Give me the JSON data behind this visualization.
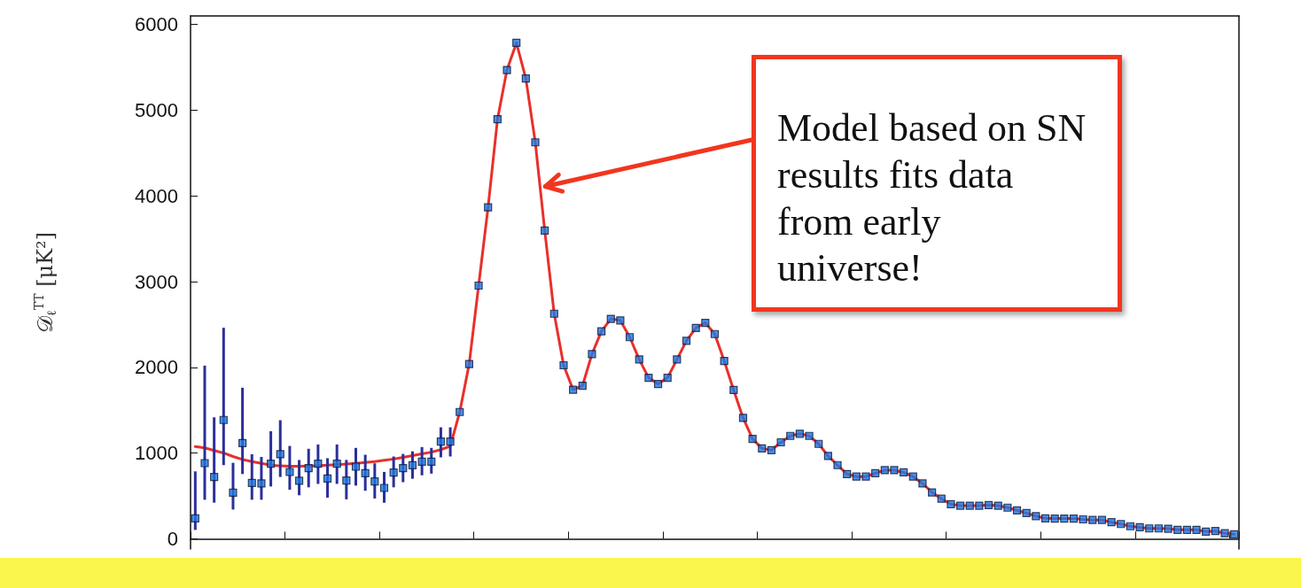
{
  "chart_data": {
    "type": "scatter",
    "ylabel": "𝒟$_{ℓ}$$^{TT}$ [μK²]",
    "categories": [
      null,
      null,
      null,
      null,
      null,
      null,
      null,
      null,
      null,
      null,
      null,
      null,
      null,
      null,
      null,
      null,
      null,
      null,
      null,
      null,
      null,
      null,
      null,
      null,
      null,
      null,
      null,
      null,
      null,
      null,
      null,
      null,
      null,
      null,
      null,
      null,
      null,
      null,
      null,
      null,
      null,
      null,
      null,
      null,
      null,
      null,
      null,
      null,
      null,
      null,
      null,
      null,
      null,
      null,
      null,
      null,
      null,
      null,
      null,
      null,
      null,
      null,
      null,
      null,
      null,
      null,
      null,
      null,
      null,
      null,
      null,
      null,
      null,
      null,
      null,
      null,
      null,
      null,
      null,
      null,
      null,
      null,
      null,
      null,
      null,
      null,
      null,
      null,
      null,
      null,
      null,
      null,
      null,
      null,
      null,
      null,
      null,
      null,
      null,
      null,
      null,
      null,
      null,
      null,
      null,
      null,
      null,
      null,
      null,
      null,
      null
    ],
    "ylim": [
      -120,
      6100
    ],
    "yticks": [
      0,
      1000,
      2000,
      3000,
      4000,
      5000,
      6000
    ],
    "tick_labels": "y",
    "series": [
      {
        "type": "line",
        "color": "#e8302a",
        "marker": "none",
        "line_style": "solid",
        "values": [
          1075,
          1060,
          1030,
          1000,
          960,
          925,
          900,
          880,
          860,
          850,
          845,
          845,
          848,
          852,
          858,
          865,
          872,
          880,
          890,
          900,
          915,
          930,
          950,
          970,
          990,
          1010,
          1040,
          1080,
          1479,
          2038,
          2954,
          3866,
          4895,
          5469,
          5786,
          5370,
          4625,
          3596,
          2626,
          2024,
          1739,
          1786,
          2155,
          2420,
          2566,
          2547,
          2352,
          2092,
          1878,
          1806,
          1878,
          2092,
          2309,
          2460,
          2519,
          2388,
          2075,
          1735,
          1410,
          1165,
          1054,
          1034,
          1125,
          1200,
          1225,
          1200,
          1107,
          966,
          859,
          755,
          725,
          725,
          765,
          800,
          800,
          774,
          725,
          645,
          541,
          467,
          404,
          386,
          386,
          386,
          393,
          386,
          363,
          331,
          300,
          264,
          238,
          236,
          236,
          236,
          226,
          219,
          219,
          193,
          172,
          146,
          134,
          120,
          120,
          117,
          104,
          104,
          104,
          83,
          90,
          64,
          52
        ]
      },
      {
        "color": "#1f78e6",
        "marker": "square",
        "values": [
          238,
          882,
          721,
          1386,
          538,
          1117,
          652,
          645,
          876,
          986,
          779,
          676,
          824,
          876,
          703,
          876,
          679,
          841,
          765,
          669,
          593,
          772,
          824,
          858,
          900,
          900,
          1134,
          1134,
          1479,
          2038,
          2954,
          3866,
          4895,
          5469,
          5786,
          5370,
          4625,
          3596,
          2626,
          2024,
          1739,
          1786,
          2155,
          2420,
          2566,
          2547,
          2352,
          2092,
          1878,
          1806,
          1878,
          2092,
          2309,
          2460,
          2519,
          2388,
          2075,
          1735,
          1410,
          1165,
          1054,
          1034,
          1125,
          1200,
          1225,
          1200,
          1107,
          966,
          859,
          755,
          725,
          725,
          765,
          800,
          800,
          774,
          725,
          645,
          541,
          467,
          404,
          386,
          386,
          386,
          393,
          386,
          363,
          331,
          300,
          264,
          238,
          236,
          236,
          236,
          226,
          219,
          219,
          193,
          172,
          146,
          134,
          120,
          120,
          117,
          104,
          104,
          104,
          83,
          90,
          64,
          52
        ],
        "errors": [
          [
            103,
            786
          ],
          [
            455,
            2020
          ],
          [
            421,
            1417
          ],
          [
            859,
            2462
          ],
          [
            341,
            886
          ],
          [
            755,
            1762
          ],
          [
            455,
            986
          ],
          [
            455,
            955
          ],
          [
            610,
            1255
          ],
          [
            721,
            1383
          ],
          [
            572,
            1083
          ],
          [
            507,
            919
          ],
          [
            600,
            1050
          ],
          [
            640,
            1100
          ],
          [
            480,
            940
          ],
          [
            640,
            1100
          ],
          [
            460,
            920
          ],
          [
            620,
            1060
          ],
          [
            560,
            980
          ],
          [
            470,
            880
          ],
          [
            420,
            780
          ],
          [
            600,
            960
          ],
          [
            660,
            990
          ],
          [
            700,
            1020
          ],
          [
            740,
            1070
          ],
          [
            760,
            1060
          ],
          [
            950,
            1300
          ],
          [
            960,
            1300
          ],
          null,
          null,
          null,
          null,
          null,
          null,
          null,
          null,
          null,
          null,
          null,
          null,
          null,
          null,
          null,
          null,
          null,
          null,
          null,
          null,
          null,
          null,
          null,
          null,
          null,
          null,
          null,
          null,
          null,
          null,
          null,
          null,
          null,
          null,
          null,
          null,
          null,
          null,
          null,
          null,
          null,
          null,
          null,
          null,
          null,
          null,
          null,
          null,
          null,
          null,
          null,
          null,
          null,
          null,
          null,
          null,
          null,
          null,
          null,
          null,
          null,
          null,
          null,
          null,
          null,
          null,
          null,
          null,
          null,
          null,
          null,
          null,
          null,
          null,
          null,
          null,
          null,
          null,
          null,
          null,
          null,
          null,
          null
        ]
      }
    ],
    "annotations": [
      "Model based on SN results fits data from early universe!"
    ]
  }
}
